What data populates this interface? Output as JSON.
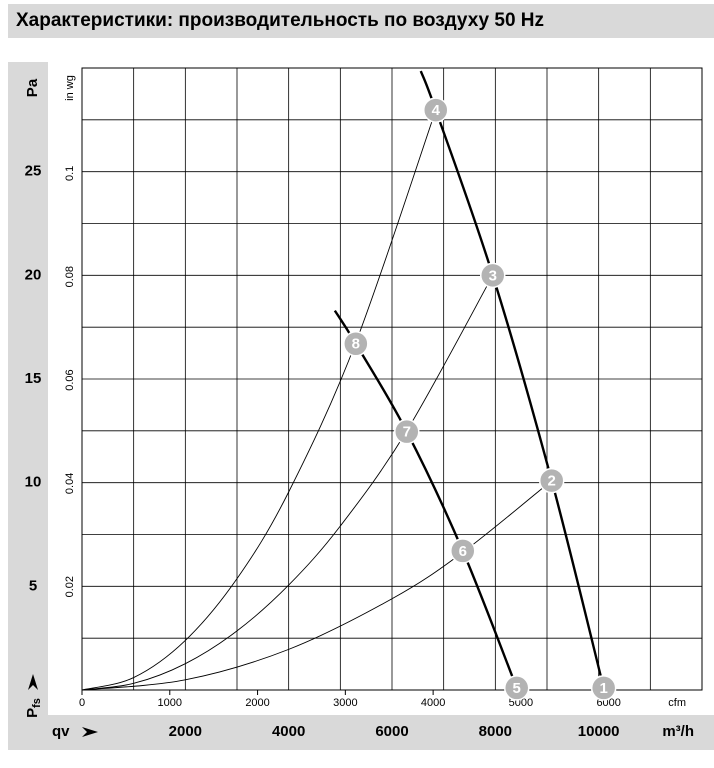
{
  "chart_data": {
    "type": "line",
    "title": "Характеристики: производительность по воздуху 50 Hz",
    "x_unit": "m³/h",
    "x2_unit": "cfm",
    "y_unit": "Pa",
    "y2_unit": "in wg",
    "x_symbol": "qv",
    "y_symbol": "P",
    "y_symbol_sub": "fs",
    "xlim": [
      0,
      12000
    ],
    "xticks": [
      2000,
      4000,
      6000,
      8000,
      10000
    ],
    "x2lim": [
      0,
      7063
    ],
    "x2ticks": [
      0,
      1000,
      2000,
      3000,
      4000,
      5000,
      6000
    ],
    "ylim": [
      0,
      30
    ],
    "yticks": [
      5,
      10,
      15,
      20,
      25
    ],
    "y2lim": [
      0,
      0.1204
    ],
    "y2ticks": [
      0.02,
      0.04,
      0.06,
      0.08,
      0.1
    ],
    "xgrid_step": 1000,
    "ygrid_step": 2.5,
    "grid": true,
    "series": [
      {
        "color": "#000000",
        "linewidth": 2.4,
        "x": [
          6557,
          6847,
          7950,
          9091,
          10097
        ],
        "values": [
          29.85,
          27.97,
          20.0,
          10.1,
          0.1
        ]
      },
      {
        "color": "#000000",
        "linewidth": 2.4,
        "x": [
          4894,
          5300,
          6286,
          7370,
          8414
        ],
        "values": [
          18.3,
          16.7,
          12.46,
          6.71,
          0.1
        ]
      },
      {
        "color": "#000000",
        "linewidth": 0.9,
        "x": [
          0,
          1000,
          2000,
          3000,
          4000,
          5300,
          6847
        ],
        "values": [
          0,
          0.6,
          2.39,
          5.37,
          9.55,
          16.76,
          27.97
        ]
      },
      {
        "color": "#000000",
        "linewidth": 0.9,
        "x": [
          0,
          1000,
          2000,
          3000,
          4000,
          5000,
          6286,
          7950
        ],
        "values": [
          0,
          0.32,
          1.27,
          2.85,
          5.06,
          7.91,
          12.5,
          20.0
        ]
      },
      {
        "color": "#000000",
        "linewidth": 0.9,
        "x": [
          0,
          2000,
          4000,
          6000,
          7370,
          9091
        ],
        "values": [
          0,
          0.49,
          1.96,
          4.4,
          6.64,
          10.1
        ]
      }
    ],
    "points": [
      {
        "label": "1",
        "x": 10097,
        "y": 0.1
      },
      {
        "label": "2",
        "x": 9091,
        "y": 10.1
      },
      {
        "label": "3",
        "x": 7950,
        "y": 20.0
      },
      {
        "label": "4",
        "x": 6847,
        "y": 27.97
      },
      {
        "label": "5",
        "x": 8414,
        "y": 0.1
      },
      {
        "label": "6",
        "x": 7370,
        "y": 6.71
      },
      {
        "label": "7",
        "x": 6286,
        "y": 12.46
      },
      {
        "label": "8",
        "x": 5300,
        "y": 16.7
      }
    ],
    "point_color": "#b3b3b3"
  }
}
